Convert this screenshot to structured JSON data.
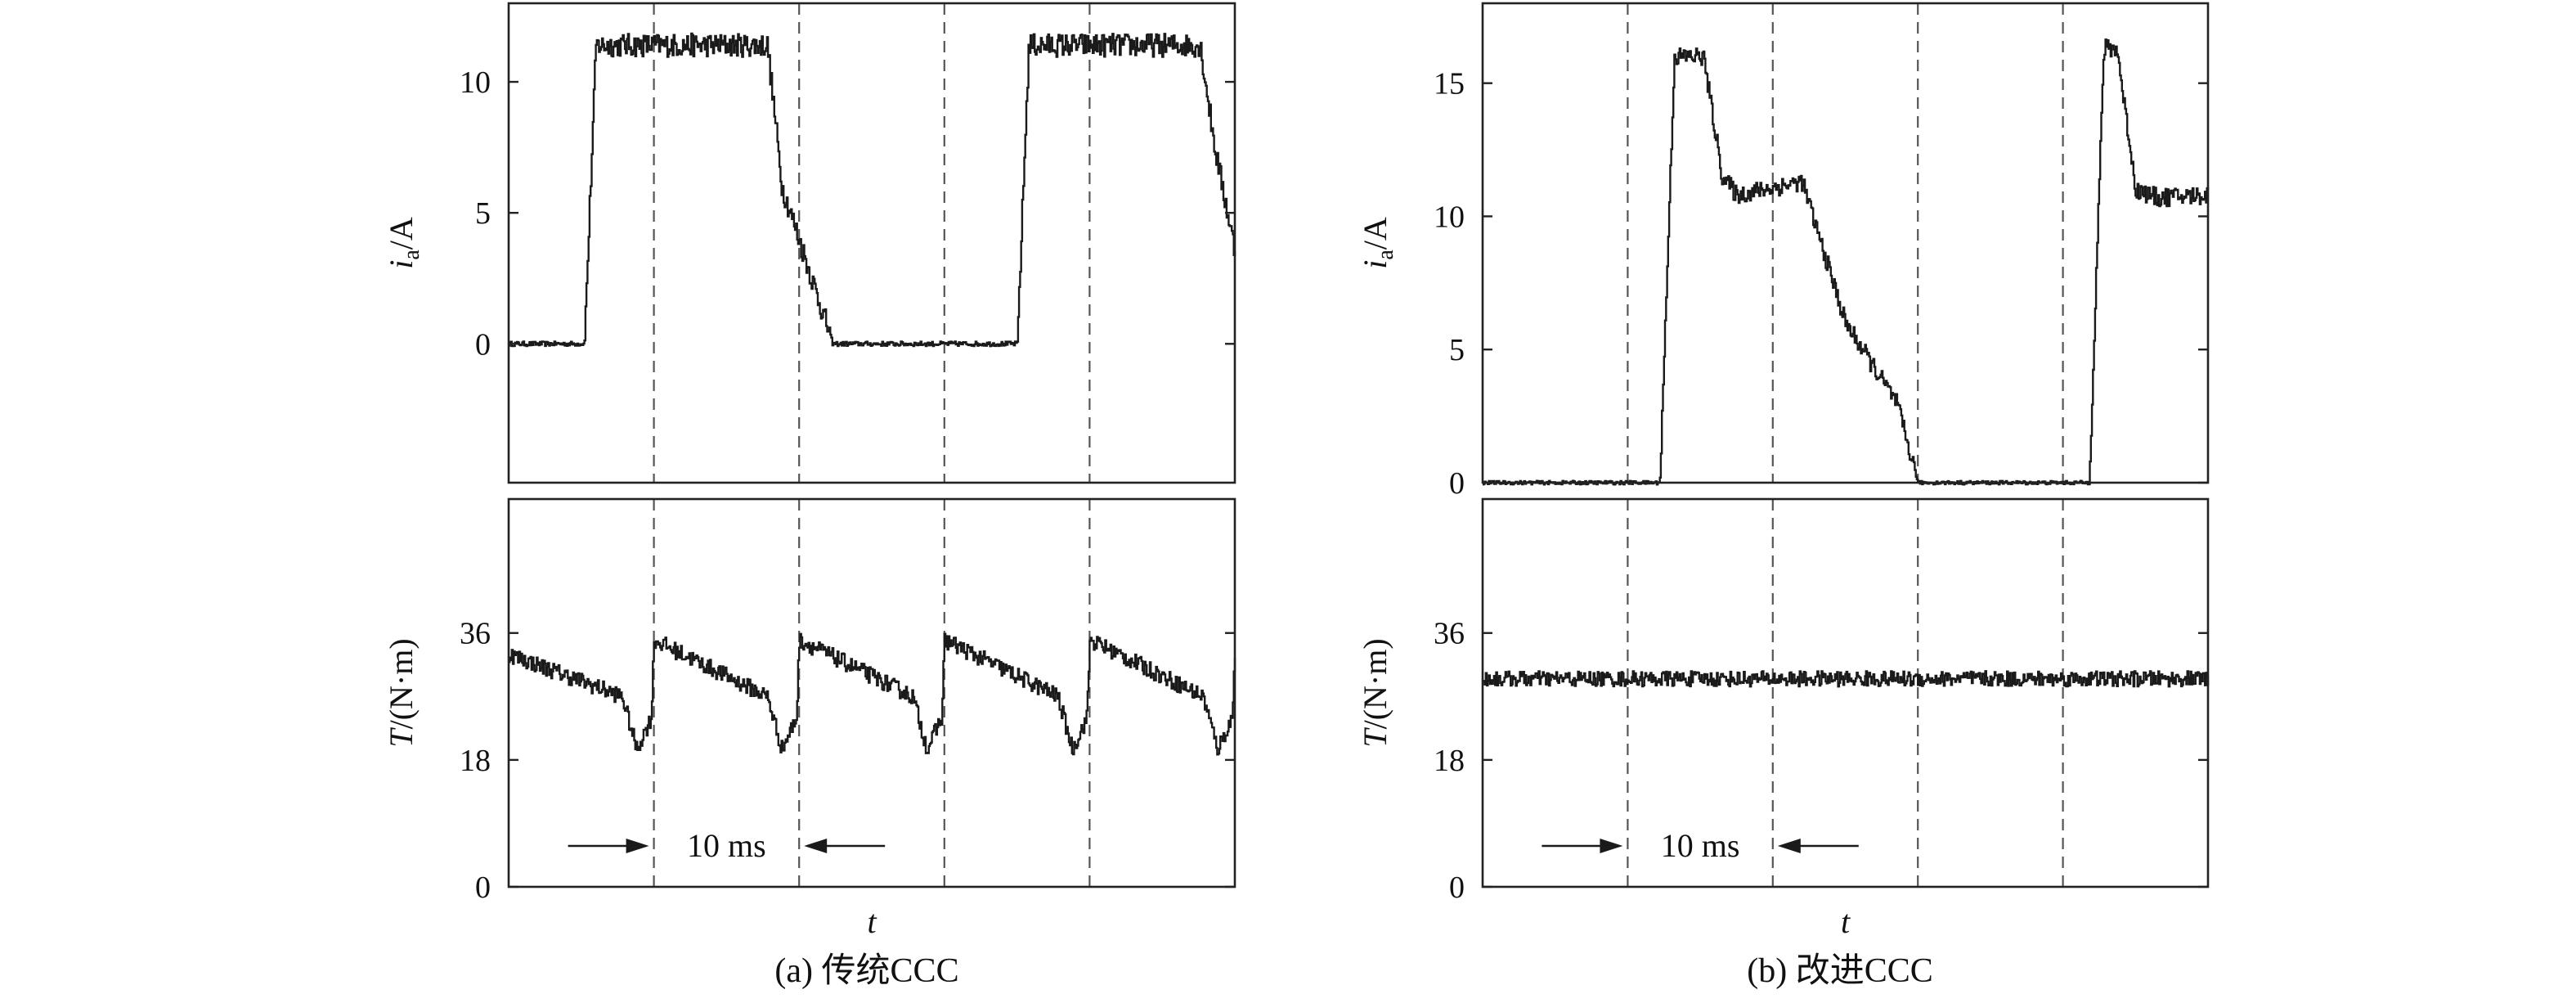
{
  "colors": {
    "trace": "#1a1a1a",
    "frame": "#222222",
    "grid": "#555555",
    "background": "#ffffff"
  },
  "chart_data": [
    {
      "type": "line",
      "panel": "a",
      "caption": "(a) 传统CCC",
      "x_label": "t",
      "annotation": {
        "text": "10 ms",
        "from_grid": 1,
        "to_grid": 2
      },
      "grid_x_ms": [
        10,
        20,
        30,
        40
      ],
      "x_range_ms": [
        0,
        50
      ],
      "subplots": [
        {
          "ylabel_main": "i",
          "ylabel_sub": "a",
          "ylabel_unit": "/A",
          "ylim": [
            -5.3,
            13
          ],
          "yticks": [
            0,
            5,
            10
          ],
          "ytick_labels": [
            "0",
            "5",
            "10"
          ],
          "noise": 0.45,
          "series": [
            {
              "x": [
                0,
                5.2,
                6.0,
                17.8,
                18.8,
                22.3,
                35.0,
                35.8,
                47.6,
                48.6,
                50
              ],
              "y": [
                0,
                0,
                11.4,
                11.4,
                6.0,
                0,
                0,
                11.4,
                11.4,
                7.5,
                3.5
              ]
            }
          ]
        },
        {
          "ylabel_main": "T",
          "ylabel_unit": "/(N·m)",
          "ylim": [
            0,
            55
          ],
          "yticks": [
            0,
            18,
            36
          ],
          "ytick_labels": [
            "0",
            "18",
            "36"
          ],
          "noise": 1.2,
          "series": [
            {
              "x": [
                0,
                7.8,
                8.8,
                9.8,
                10.0,
                17.8,
                18.8,
                19.8,
                20.0,
                27.8,
                28.8,
                29.8,
                30.0,
                37.8,
                38.8,
                39.8,
                40.0,
                47.8,
                48.8,
                49.8,
                50
              ],
              "y": [
                33,
                27,
                19.5,
                24,
                35,
                27,
                19.5,
                24,
                35,
                27,
                19.5,
                24,
                35,
                27,
                19.5,
                24,
                35,
                27,
                19.5,
                24,
                33
              ]
            }
          ]
        }
      ]
    },
    {
      "type": "line",
      "panel": "b",
      "caption": "(b) 改进CCC",
      "x_label": "t",
      "annotation": {
        "text": "10 ms",
        "from_grid": 1,
        "to_grid": 2
      },
      "grid_x_ms": [
        10,
        20,
        30,
        40
      ],
      "x_range_ms": [
        0,
        50
      ],
      "subplots": [
        {
          "ylabel_main": "i",
          "ylabel_sub": "a",
          "ylabel_unit": "/A",
          "ylim": [
            0,
            18
          ],
          "yticks": [
            0,
            5,
            10,
            15
          ],
          "ytick_labels": [
            "0",
            "5",
            "10",
            "15"
          ],
          "noise": 0.35,
          "series": [
            {
              "x": [
                0,
                12.2,
                13.2,
                15.2,
                16.5,
                17.5,
                22.0,
                25.0,
                28.5,
                30.0,
                41.8,
                42.8,
                43.7,
                45.0,
                46.5,
                50
              ],
              "y": [
                0,
                0,
                16.0,
                16.0,
                11.5,
                10.8,
                11.3,
                6.0,
                3.0,
                0,
                0,
                16.3,
                16.3,
                11.0,
                10.7,
                10.8
              ]
            }
          ]
        },
        {
          "ylabel_main": "T",
          "ylabel_unit": "/(N·m)",
          "ylim": [
            0,
            55
          ],
          "yticks": [
            0,
            18,
            36
          ],
          "ytick_labels": [
            "0",
            "18",
            "36"
          ],
          "noise": 1.1,
          "series": [
            {
              "x": [
                0,
                50
              ],
              "y": [
                29.5,
                29.5
              ]
            }
          ]
        }
      ]
    }
  ]
}
